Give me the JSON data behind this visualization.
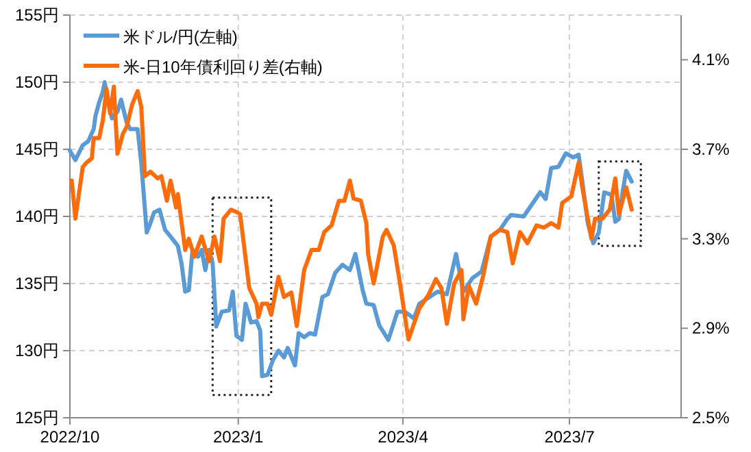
{
  "chart_data": {
    "type": "line",
    "xlim": [
      "2022-10-01",
      "2023-08-31"
    ],
    "xticks": [
      {
        "value": "2022-10-01",
        "label": "2022/10"
      },
      {
        "value": "2023-01-01",
        "label": "2023/1"
      },
      {
        "value": "2023-04-01",
        "label": "2023/4"
      },
      {
        "value": "2023-07-01",
        "label": "2023/7"
      }
    ],
    "ylim": [
      125,
      155
    ],
    "yticks": [
      {
        "value": 125,
        "label": "125円"
      },
      {
        "value": 130,
        "label": "130円"
      },
      {
        "value": 135,
        "label": "135円"
      },
      {
        "value": 140,
        "label": "140円"
      },
      {
        "value": 145,
        "label": "145円"
      },
      {
        "value": 150,
        "label": "150円"
      },
      {
        "value": 155,
        "label": "155円"
      }
    ],
    "y2lim": [
      2.5,
      4.3
    ],
    "y2ticks": [
      {
        "value": 2.5,
        "label": "2.5%"
      },
      {
        "value": 2.9,
        "label": "2.9%"
      },
      {
        "value": 3.3,
        "label": "3.3%"
      },
      {
        "value": 3.7,
        "label": "3.7%"
      },
      {
        "value": 4.1,
        "label": "4.1%"
      }
    ],
    "grid": true,
    "legend": "top left",
    "marker": "none",
    "line_style": "solid",
    "series": [
      {
        "name": "米ドル/円(左軸)",
        "color": "#5b9bd5",
        "x": [
          "2022-10-01",
          "2022-10-04",
          "2022-10-08",
          "2022-10-11",
          "2022-10-14",
          "2022-10-15",
          "2022-10-17",
          "2022-10-19",
          "2022-10-20",
          "2022-10-22",
          "2022-10-24",
          "2022-10-27",
          "2022-10-29",
          "2022-11-01",
          "2022-11-03",
          "2022-11-07",
          "2022-11-09",
          "2022-11-12",
          "2022-11-14",
          "2022-11-16",
          "2022-11-19",
          "2022-11-22",
          "2022-11-25",
          "2022-11-29",
          "2022-12-01",
          "2022-12-03",
          "2022-12-05",
          "2022-12-07",
          "2022-12-10",
          "2022-12-12",
          "2022-12-14",
          "2022-12-16",
          "2022-12-18",
          "2022-12-20",
          "2022-12-23",
          "2022-12-27",
          "2022-12-29",
          "2022-12-31",
          "2023-01-03",
          "2023-01-05",
          "2023-01-08",
          "2023-01-11",
          "2023-01-13",
          "2023-01-14",
          "2023-01-17",
          "2023-01-20",
          "2023-01-23",
          "2023-01-26",
          "2023-01-28",
          "2023-02-01",
          "2023-02-03",
          "2023-02-06",
          "2023-02-09",
          "2023-02-12",
          "2023-02-16",
          "2023-02-19",
          "2023-02-23",
          "2023-02-27",
          "2023-03-03",
          "2023-03-06",
          "2023-03-10",
          "2023-03-12",
          "2023-03-16",
          "2023-03-19",
          "2023-03-24",
          "2023-03-29",
          "2023-04-02",
          "2023-04-07",
          "2023-04-10",
          "2023-04-20",
          "2023-04-25",
          "2023-04-30",
          "2023-05-04",
          "2023-05-09",
          "2023-05-14",
          "2023-05-19",
          "2023-05-24",
          "2023-05-28",
          "2023-05-30",
          "2023-06-06",
          "2023-06-15",
          "2023-06-18",
          "2023-06-21",
          "2023-06-25",
          "2023-06-29",
          "2023-07-03",
          "2023-07-06",
          "2023-07-08",
          "2023-07-11",
          "2023-07-14",
          "2023-07-17",
          "2023-07-20",
          "2023-07-24",
          "2023-07-26",
          "2023-07-28",
          "2023-07-30",
          "2023-08-01",
          "2023-08-04"
        ],
        "values": [
          144.9,
          144.2,
          145.3,
          145.6,
          146.5,
          147.5,
          148.5,
          149.3,
          150.0,
          148.5,
          147.3,
          147.8,
          148.7,
          147.0,
          146.5,
          146.5,
          144.0,
          138.8,
          139.5,
          140.3,
          140.5,
          139.0,
          138.5,
          137.8,
          136.5,
          134.4,
          134.5,
          137.5,
          137.0,
          137.5,
          136.0,
          137.5,
          136.5,
          131.8,
          132.9,
          133.0,
          134.4,
          131.1,
          130.8,
          133.5,
          132.1,
          132.2,
          131.5,
          128.1,
          128.2,
          129.3,
          130.0,
          129.5,
          130.2,
          128.9,
          131.3,
          131.0,
          131.3,
          131.2,
          134.0,
          134.2,
          135.8,
          136.4,
          136.0,
          137.2,
          134.5,
          133.5,
          133.4,
          131.9,
          130.8,
          132.9,
          132.9,
          132.4,
          133.5,
          134.4,
          134.2,
          137.2,
          134.4,
          135.4,
          135.9,
          138.5,
          139.0,
          139.8,
          140.1,
          140.0,
          141.8,
          141.3,
          143.6,
          143.7,
          144.7,
          144.4,
          144.6,
          142.6,
          139.5,
          138.0,
          138.8,
          141.8,
          141.6,
          139.6,
          139.8,
          141.8,
          143.4,
          142.6
        ]
      },
      {
        "name": "米-日10年債利回り差(右軸)",
        "color": "#fa6c0c",
        "axis": "y2",
        "x": [
          "2022-10-02",
          "2022-10-04",
          "2022-10-08",
          "2022-10-10",
          "2022-10-13",
          "2022-10-14",
          "2022-10-17",
          "2022-10-19",
          "2022-10-21",
          "2022-10-23",
          "2022-10-25",
          "2022-10-27",
          "2022-10-30",
          "2022-11-01",
          "2022-11-04",
          "2022-11-07",
          "2022-11-09",
          "2022-11-11",
          "2022-11-14",
          "2022-11-18",
          "2022-11-20",
          "2022-11-23",
          "2022-11-25",
          "2022-11-28",
          "2022-11-29",
          "2022-12-03",
          "2022-12-05",
          "2022-12-08",
          "2022-12-12",
          "2022-12-16",
          "2022-12-19",
          "2022-12-22",
          "2022-12-24",
          "2022-12-28",
          "2022-12-31",
          "2023-01-02",
          "2023-01-04",
          "2023-01-07",
          "2023-01-11",
          "2023-01-12",
          "2023-01-14",
          "2023-01-17",
          "2023-01-19",
          "2023-01-23",
          "2023-01-26",
          "2023-01-30",
          "2023-02-02",
          "2023-02-06",
          "2023-02-10",
          "2023-02-14",
          "2023-02-17",
          "2023-02-21",
          "2023-02-25",
          "2023-02-28",
          "2023-03-03",
          "2023-03-05",
          "2023-03-09",
          "2023-03-12",
          "2023-03-13",
          "2023-03-16",
          "2023-03-21",
          "2023-03-23",
          "2023-03-27",
          "2023-03-30",
          "2023-04-04",
          "2023-04-07",
          "2023-04-10",
          "2023-04-15",
          "2023-04-19",
          "2023-04-22",
          "2023-04-25",
          "2023-04-29",
          "2023-05-03",
          "2023-05-04",
          "2023-05-07",
          "2023-05-11",
          "2023-05-15",
          "2023-05-19",
          "2023-05-24",
          "2023-05-28",
          "2023-05-31",
          "2023-06-04",
          "2023-06-08",
          "2023-06-13",
          "2023-06-17",
          "2023-06-21",
          "2023-06-25",
          "2023-06-27",
          "2023-07-02",
          "2023-07-06",
          "2023-07-08",
          "2023-07-11",
          "2023-07-13",
          "2023-07-15",
          "2023-07-19",
          "2023-07-23",
          "2023-07-26",
          "2023-07-28",
          "2023-07-30",
          "2023-08-01",
          "2023-08-04"
        ],
        "values": [
          3.56,
          3.39,
          3.62,
          3.64,
          3.66,
          3.75,
          3.75,
          3.83,
          3.97,
          3.86,
          3.98,
          3.68,
          3.77,
          3.8,
          3.9,
          3.96,
          3.89,
          3.58,
          3.6,
          3.57,
          3.58,
          3.47,
          3.56,
          3.44,
          3.5,
          3.25,
          3.3,
          3.22,
          3.31,
          3.2,
          3.31,
          3.2,
          3.39,
          3.43,
          3.42,
          3.41,
          3.28,
          3.08,
          3.01,
          2.95,
          3.01,
          3.01,
          2.96,
          3.13,
          3.04,
          3.06,
          2.91,
          3.16,
          3.25,
          3.25,
          3.33,
          3.36,
          3.47,
          3.47,
          3.56,
          3.48,
          3.47,
          3.37,
          3.23,
          3.1,
          3.31,
          3.34,
          3.27,
          3.12,
          2.85,
          2.92,
          2.99,
          3.05,
          3.12,
          3.08,
          2.92,
          3.1,
          3.16,
          2.94,
          3.09,
          3.01,
          3.14,
          3.31,
          3.34,
          3.33,
          3.19,
          3.33,
          3.28,
          3.36,
          3.35,
          3.37,
          3.35,
          3.46,
          3.49,
          3.64,
          3.53,
          3.39,
          3.3,
          3.39,
          3.39,
          3.43,
          3.57,
          3.41,
          3.47,
          3.53,
          3.43
        ]
      }
    ]
  }
}
